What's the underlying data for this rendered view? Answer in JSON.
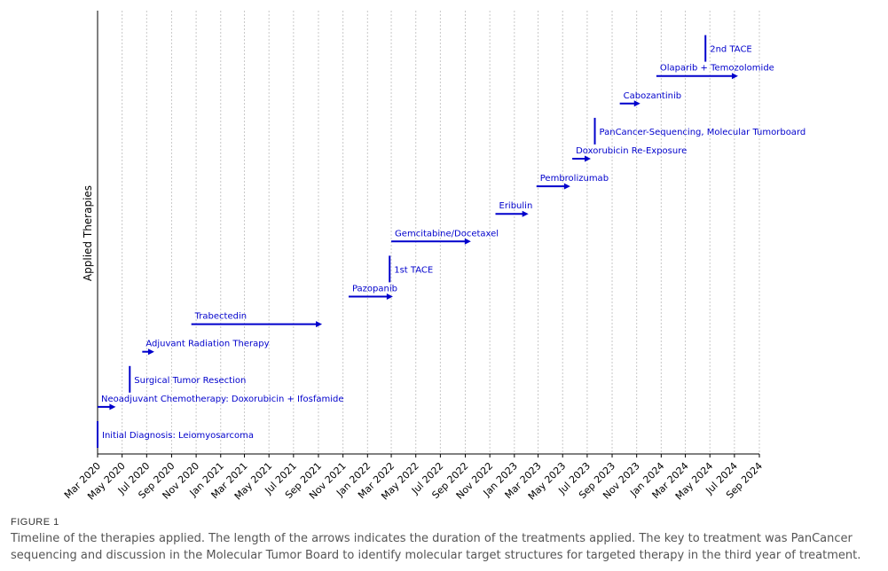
{
  "chart_data": {
    "type": "timeline",
    "title": "",
    "xlabel": "",
    "ylabel": "Applied Therapies",
    "x_start": "2020-03",
    "x_end": "2024-09",
    "x_ticks": [
      "Mar 2020",
      "May 2020",
      "Jul 2020",
      "Sep 2020",
      "Nov 2020",
      "Jan 2021",
      "Mar 2021",
      "May 2021",
      "Jul 2021",
      "Sep 2021",
      "Nov 2021",
      "Jan 2022",
      "Mar 2022",
      "May 2022",
      "Jul 2022",
      "Sep 2022",
      "Nov 2022",
      "Jan 2023",
      "Mar 2023",
      "May 2023",
      "Jul 2023",
      "Sep 2023",
      "Nov 2023",
      "Jan 2024",
      "Mar 2024",
      "May 2024",
      "Jul 2024",
      "Sep 2024"
    ],
    "grid": "vertical-dotted",
    "series_color": "#0000cc",
    "events": [
      {
        "label": "Initial Diagnosis: Leiomyosarcoma",
        "kind": "point",
        "start": "2020-03-01",
        "end": "2020-03-01"
      },
      {
        "label": "Neoadjuvant Chemotherapy: Doxorubicin + Ifosfamide",
        "kind": "range",
        "start": "2020-03-01",
        "end": "2020-04-15"
      },
      {
        "label": "Surgical Tumor Resection",
        "kind": "point",
        "start": "2020-05-20",
        "end": "2020-05-20"
      },
      {
        "label": "Adjuvant Radiation Therapy",
        "kind": "range",
        "start": "2020-06-20",
        "end": "2020-07-20"
      },
      {
        "label": "Trabectedin",
        "kind": "range",
        "start": "2020-10-20",
        "end": "2021-09-10"
      },
      {
        "label": "Pazopanib",
        "kind": "range",
        "start": "2021-11-15",
        "end": "2022-03-05"
      },
      {
        "label": "1st TACE",
        "kind": "point",
        "start": "2022-02-25",
        "end": "2022-02-25"
      },
      {
        "label": "Gemcitabine/Docetaxel",
        "kind": "range",
        "start": "2022-03-01",
        "end": "2022-09-15"
      },
      {
        "label": "Eribulin",
        "kind": "range",
        "start": "2022-11-15",
        "end": "2023-02-05"
      },
      {
        "label": "Pembrolizumab",
        "kind": "range",
        "start": "2023-02-25",
        "end": "2023-05-20"
      },
      {
        "label": "Doxorubicin Re-Exposure",
        "kind": "range",
        "start": "2023-05-25",
        "end": "2023-07-10"
      },
      {
        "label": "PanCancer-Sequencing, Molecular Tumorboard",
        "kind": "point",
        "start": "2023-07-20",
        "end": "2023-07-20"
      },
      {
        "label": "Cabozantinib",
        "kind": "range",
        "start": "2023-09-20",
        "end": "2023-11-10"
      },
      {
        "label": "Olaparib + Temozolomide",
        "kind": "range",
        "start": "2023-12-20",
        "end": "2024-07-10"
      },
      {
        "label": "2nd TACE",
        "kind": "point",
        "start": "2024-04-20",
        "end": "2024-04-20"
      }
    ]
  },
  "figure": {
    "label": "FIGURE 1",
    "caption": "Timeline of the therapies applied. The length of the arrows indicates the duration of the treatments applied. The key to treatment was PanCancer sequencing and discussion in the Molecular Tumor Board to identify molecular target structures for targeted therapy in the third year of treatment."
  }
}
